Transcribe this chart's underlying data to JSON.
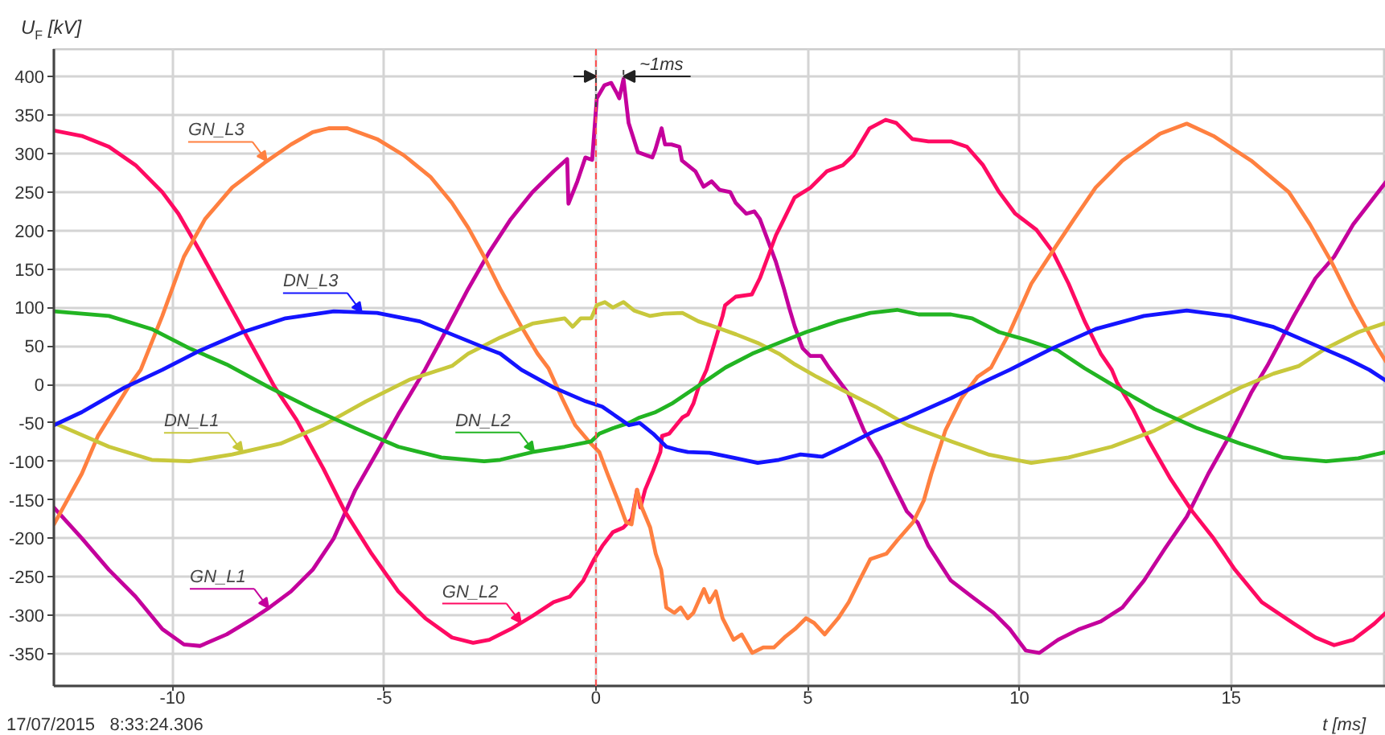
{
  "chart_data": {
    "type": "line",
    "xlabel": "t [ms]",
    "ylabel": "U$_{F}$ [kV]",
    "xlim": [
      -12.8,
      18.65
    ],
    "ylim": [
      -392,
      436
    ],
    "xticks": [
      -10,
      -5,
      0,
      5,
      10,
      15
    ],
    "yticks": [
      -350,
      -300,
      -250,
      -200,
      -150,
      -100,
      -50,
      0,
      50,
      100,
      150,
      200,
      250,
      300,
      350,
      400
    ],
    "grid": true,
    "ref_lines": [
      {
        "axis": "x",
        "value": 0,
        "color": "#ff5050",
        "line_style": "dashed"
      }
    ],
    "annotations": [
      "~1ms",
      "17/07/2015   8:33:24.306"
    ],
    "series": [
      {
        "name": "GN_L1",
        "color": "#c4009c",
        "x": [
          -12.8,
          -12.14,
          -11.5,
          -10.87,
          -10.24,
          -9.73,
          -9.35,
          -8.72,
          -8.09,
          -7.71,
          -7.2,
          -6.69,
          -6.19,
          -5.68,
          -5.17,
          -4.67,
          -4.04,
          -3.5,
          -3.02,
          -2.51,
          -2.01,
          -1.5,
          -1.0,
          -0.68,
          -0.65,
          -0.44,
          -0.25,
          -0.09,
          0.02,
          0.2,
          0.36,
          0.48,
          0.55,
          0.65,
          0.77,
          0.99,
          1.33,
          1.4,
          1.55,
          1.63,
          1.78,
          1.97,
          2.03,
          2.35,
          2.54,
          2.73,
          2.92,
          3.17,
          3.3,
          3.55,
          3.74,
          3.87,
          4.06,
          4.25,
          4.44,
          4.56,
          4.69,
          4.88,
          5.06,
          5.32,
          5.5,
          5.95,
          6.33,
          6.71,
          6.96,
          7.34,
          7.6,
          7.85,
          8.38,
          8.88,
          9.39,
          9.77,
          10.15,
          10.47,
          10.91,
          11.42,
          11.92,
          12.43,
          12.94,
          13.44,
          13.95,
          14.46,
          14.96,
          15.47,
          15.85,
          16.48,
          16.99,
          17.43,
          17.88,
          18.65
        ],
        "values": [
          -160,
          -200,
          -241,
          -276,
          -318,
          -338,
          -340,
          -325,
          -304,
          -290,
          -269,
          -241,
          -200,
          -137,
          -88,
          -39,
          19,
          74,
          124,
          173,
          215,
          250,
          277,
          293,
          235,
          264,
          295,
          292,
          372,
          389,
          392,
          380,
          372,
          397,
          340,
          302,
          295,
          305,
          333,
          312,
          312,
          309,
          291,
          277,
          257,
          264,
          253,
          250,
          236,
          222,
          225,
          215,
          187,
          159,
          124,
          100,
          76,
          47,
          37,
          37,
          22,
          -11,
          -60,
          -95,
          -123,
          -165,
          -180,
          -210,
          -255,
          -276,
          -297,
          -318,
          -346,
          -349,
          -332,
          -318,
          -308,
          -290,
          -255,
          -213,
          -172,
          -116,
          -67,
          -11,
          24,
          89,
          138,
          166,
          208,
          263
        ]
      },
      {
        "name": "GN_L2",
        "color": "#ff0a62",
        "x": [
          -12.8,
          -12.14,
          -11.5,
          -10.87,
          -10.24,
          -9.86,
          -9.35,
          -8.72,
          -8.09,
          -7.58,
          -7.07,
          -6.44,
          -5.93,
          -5.3,
          -4.67,
          -4.03,
          -3.4,
          -2.9,
          -2.52,
          -2.01,
          -1.5,
          -1.0,
          -0.62,
          -0.3,
          -0.04,
          0.15,
          0.4,
          0.65,
          0.84,
          0.97,
          1.05,
          1.16,
          1.35,
          1.52,
          1.56,
          1.73,
          2.04,
          2.17,
          2.3,
          2.42,
          2.61,
          2.8,
          2.99,
          3.05,
          3.3,
          3.68,
          3.87,
          4.06,
          4.25,
          4.44,
          4.69,
          5.07,
          5.45,
          5.83,
          6.08,
          6.46,
          6.84,
          7.09,
          7.47,
          7.85,
          8.38,
          8.76,
          9.14,
          9.52,
          9.9,
          10.4,
          10.78,
          11.16,
          11.54,
          11.92,
          12.18,
          12.3,
          12.68,
          13.06,
          13.57,
          14.08,
          14.58,
          15.09,
          15.72,
          16.48,
          16.99,
          17.43,
          17.88,
          18.38,
          18.65
        ],
        "values": [
          330,
          323,
          309,
          285,
          250,
          222,
          173,
          110,
          47,
          -4,
          -46,
          -109,
          -165,
          -220,
          -269,
          -304,
          -329,
          -336,
          -332,
          -318,
          -301,
          -283,
          -276,
          -255,
          -227,
          -210,
          -192,
          -186,
          -175,
          -137,
          -160,
          -137,
          -112,
          -88,
          -67,
          -64,
          -43,
          -39,
          -25,
          -4,
          19,
          54,
          89,
          103,
          114,
          117,
          138,
          166,
          194,
          215,
          243,
          256,
          277,
          285,
          298,
          333,
          344,
          340,
          319,
          316,
          316,
          309,
          285,
          250,
          222,
          201,
          173,
          131,
          82,
          40,
          19,
          3,
          -32,
          -74,
          -123,
          -165,
          -200,
          -241,
          -283,
          -311,
          -329,
          -339,
          -332,
          -311,
          -297
        ]
      },
      {
        "name": "GN_L3",
        "color": "#ff8040",
        "x": [
          -12.8,
          -12.14,
          -11.76,
          -11.0,
          -10.75,
          -10.24,
          -9.73,
          -9.23,
          -8.59,
          -7.83,
          -7.2,
          -6.69,
          -6.31,
          -5.87,
          -5.17,
          -4.54,
          -3.91,
          -3.4,
          -3.02,
          -2.64,
          -2.26,
          -1.76,
          -1.38,
          -1.12,
          -0.8,
          -0.49,
          -0.17,
          0.08,
          0.27,
          0.52,
          0.71,
          0.84,
          0.97,
          1.09,
          1.28,
          1.41,
          1.54,
          1.66,
          1.85,
          2.0,
          2.17,
          2.3,
          2.55,
          2.68,
          2.83,
          2.99,
          3.25,
          3.44,
          3.69,
          3.95,
          4.2,
          4.45,
          4.7,
          4.96,
          5.15,
          5.4,
          5.72,
          5.97,
          6.22,
          6.48,
          6.86,
          7.11,
          7.49,
          7.74,
          7.92,
          8.25,
          8.63,
          9.01,
          9.33,
          9.77,
          10.28,
          10.78,
          11.29,
          11.8,
          12.43,
          13.32,
          13.95,
          14.58,
          15.47,
          16.36,
          16.86,
          17.37,
          17.88,
          18.38,
          18.65
        ],
        "values": [
          -182,
          -116,
          -67,
          0,
          19,
          89,
          166,
          215,
          256,
          288,
          312,
          328,
          333,
          333,
          319,
          298,
          270,
          236,
          204,
          166,
          124,
          75,
          40,
          21,
          -18,
          -53,
          -74,
          -88,
          -116,
          -151,
          -179,
          -182,
          -137,
          -161,
          -186,
          -220,
          -241,
          -290,
          -297,
          -290,
          -304,
          -297,
          -266,
          -283,
          -269,
          -304,
          -332,
          -325,
          -349,
          -342,
          -342,
          -329,
          -318,
          -304,
          -310,
          -325,
          -304,
          -283,
          -255,
          -227,
          -220,
          -203,
          -179,
          -151,
          -116,
          -60,
          -18,
          10,
          22,
          68,
          131,
          173,
          215,
          256,
          291,
          326,
          339,
          323,
          291,
          250,
          208,
          159,
          103,
          54,
          30
        ]
      },
      {
        "name": "DN_L1",
        "color": "#c8c83c",
        "x": [
          -12.8,
          -11.5,
          -10.49,
          -9.6,
          -8.59,
          -7.45,
          -6.44,
          -5.43,
          -4.41,
          -3.4,
          -3.02,
          -2.26,
          -1.5,
          -0.74,
          -0.55,
          -0.36,
          -0.11,
          0.02,
          0.21,
          0.4,
          0.65,
          0.9,
          1.28,
          1.6,
          2.04,
          2.42,
          2.8,
          3.31,
          3.82,
          4.32,
          4.7,
          5.21,
          5.84,
          6.6,
          7.36,
          8.38,
          9.26,
          10.28,
          11.16,
          12.18,
          13.19,
          14.2,
          15.22,
          16.0,
          16.6,
          17.24,
          18.0,
          18.65
        ],
        "values": [
          -50,
          -81,
          -98,
          -100,
          -91,
          -77,
          -53,
          -22,
          6,
          24,
          40,
          61,
          79,
          86,
          75,
          86,
          86,
          103,
          107,
          100,
          107,
          96,
          89,
          92,
          93,
          82,
          75,
          65,
          54,
          40,
          26,
          10,
          -8,
          -29,
          -53,
          -74,
          -91,
          -102,
          -95,
          -81,
          -60,
          -32,
          -4,
          14,
          24,
          47,
          68,
          80
        ]
      },
      {
        "name": "DN_L2",
        "color": "#22b422",
        "x": [
          -12.8,
          -11.5,
          -10.49,
          -9.6,
          -8.72,
          -7.71,
          -6.69,
          -5.68,
          -4.67,
          -3.65,
          -2.64,
          -2.26,
          -1.5,
          -0.74,
          -0.11,
          0.08,
          0.4,
          0.78,
          1.03,
          1.41,
          1.79,
          2.17,
          2.55,
          3.06,
          3.69,
          4.32,
          4.96,
          5.72,
          6.48,
          7.11,
          7.62,
          8.38,
          8.88,
          9.52,
          10.15,
          10.91,
          11.54,
          12.3,
          13.19,
          14.2,
          15.22,
          16.23,
          17.24,
          18.0,
          18.65
        ],
        "values": [
          95,
          89,
          72,
          47,
          26,
          -4,
          -32,
          -57,
          -81,
          -95,
          -100,
          -98,
          -88,
          -81,
          -74,
          -64,
          -57,
          -50,
          -43,
          -36,
          -25,
          -11,
          3,
          22,
          40,
          54,
          68,
          82,
          93,
          97,
          91,
          91,
          86,
          68,
          58,
          44,
          21,
          -4,
          -32,
          -57,
          -77,
          -95,
          -100,
          -96,
          -88
        ]
      },
      {
        "name": "DN_L3",
        "color": "#1414ff",
        "x": [
          -12.8,
          -12.14,
          -11.13,
          -10.24,
          -9.35,
          -8.34,
          -7.33,
          -6.19,
          -5.17,
          -4.16,
          -3.4,
          -2.64,
          -2.26,
          -1.76,
          -1.0,
          -0.24,
          0.15,
          0.52,
          0.78,
          1.03,
          1.35,
          1.66,
          1.92,
          2.17,
          2.68,
          3.31,
          3.82,
          4.32,
          4.83,
          5.34,
          5.84,
          6.6,
          7.36,
          8.38,
          9.26,
          9.77,
          10.78,
          11.8,
          12.94,
          13.95,
          14.96,
          15.98,
          16.86,
          17.75,
          18.26,
          18.65
        ],
        "values": [
          -53,
          -36,
          -4,
          19,
          44,
          68,
          86,
          95,
          93,
          82,
          65,
          48,
          40,
          19,
          -4,
          -22,
          -29,
          -43,
          -53,
          -50,
          -64,
          -81,
          -85,
          -88,
          -89,
          -96,
          -102,
          -98,
          -91,
          -94,
          -81,
          -60,
          -43,
          -18,
          6,
          19,
          47,
          72,
          89,
          96,
          89,
          75,
          54,
          33,
          19,
          5
        ]
      }
    ]
  }
}
